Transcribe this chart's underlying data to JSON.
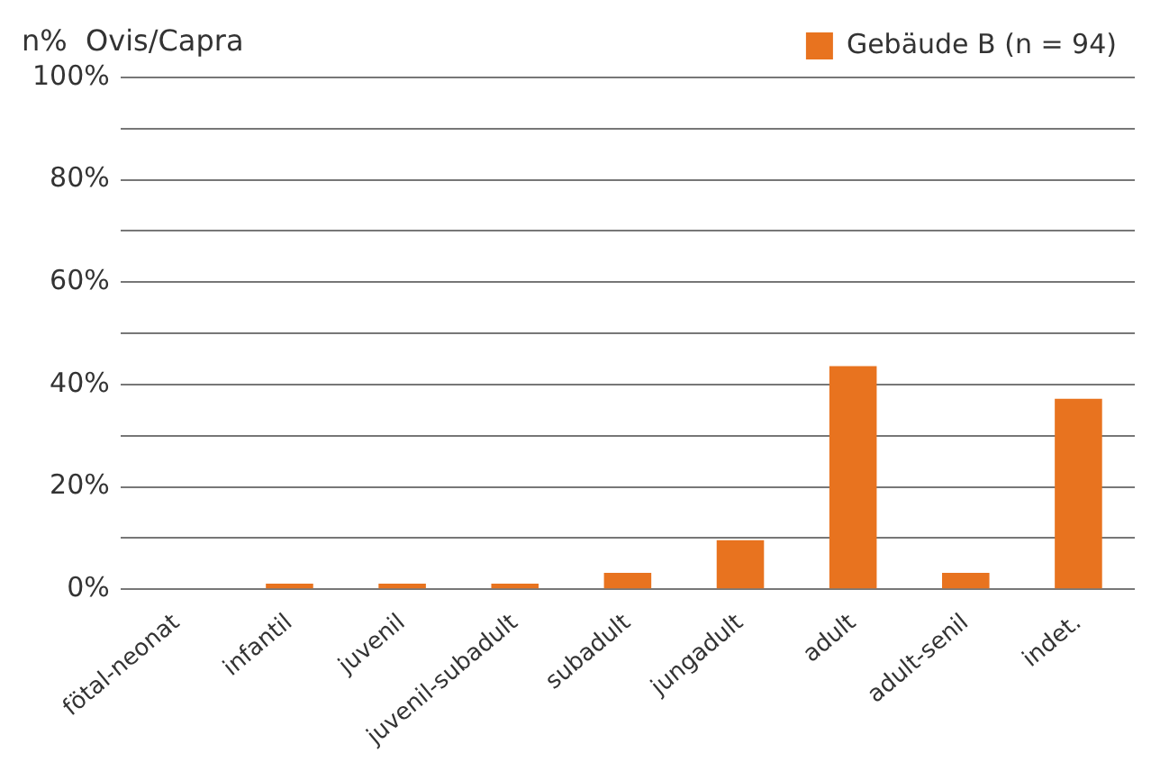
{
  "chart_data": {
    "type": "bar",
    "ylabel": "n%  Ovis/Capra",
    "categories": [
      "fötal-neonat",
      "infantil",
      "juvenil",
      "juvenil-subadult",
      "subadult",
      "jungadult",
      "adult",
      "adult-senil",
      "indet."
    ],
    "series": [
      {
        "name": "Gebäude B (n = 94)",
        "color": "#e8731f",
        "values": [
          0,
          1.1,
          1.1,
          1.1,
          3.2,
          9.6,
          43.6,
          3.2,
          37.2
        ]
      }
    ],
    "ylim": [
      0,
      100
    ],
    "yticks": [
      {
        "value": 0,
        "label": "0%"
      },
      {
        "value": 10,
        "label": null
      },
      {
        "value": 20,
        "label": "20%"
      },
      {
        "value": 30,
        "label": null
      },
      {
        "value": 40,
        "label": "40%"
      },
      {
        "value": 50,
        "label": null
      },
      {
        "value": 60,
        "label": "60%"
      },
      {
        "value": 70,
        "label": null
      },
      {
        "value": 80,
        "label": "80%"
      },
      {
        "value": 90,
        "label": null
      },
      {
        "value": 100,
        "label": "100%"
      }
    ],
    "grid": "y",
    "legend": "top right"
  }
}
